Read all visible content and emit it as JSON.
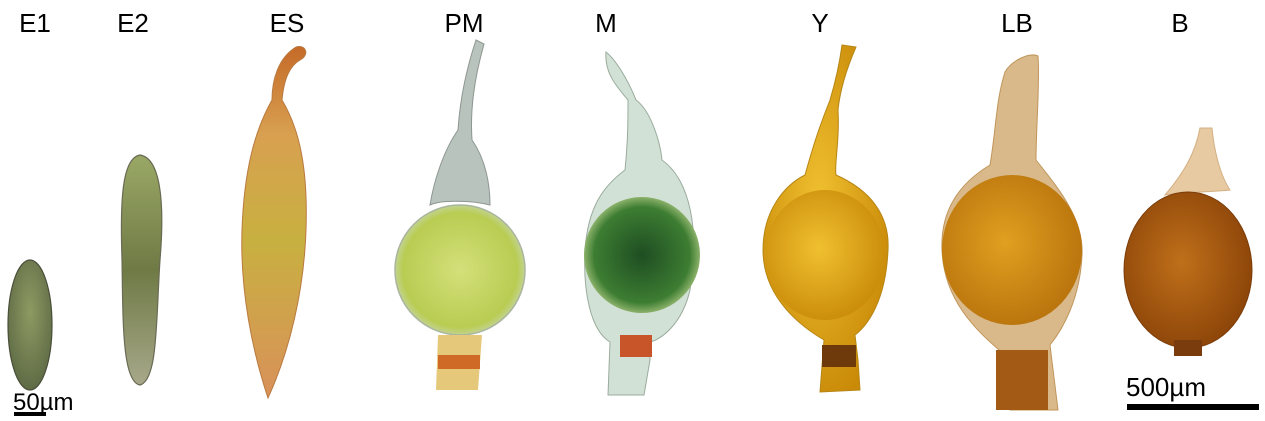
{
  "stages": [
    {
      "label": "E1",
      "color": "#7a8a55"
    },
    {
      "label": "E2",
      "color": "#8f9a5a"
    },
    {
      "label": "ES",
      "color": "#c9a33a"
    },
    {
      "label": "PM",
      "color": "#c8d860"
    },
    {
      "label": "M",
      "color": "#2f6a2a"
    },
    {
      "label": "Y",
      "color": "#e2a812"
    },
    {
      "label": "LB",
      "color": "#d6900f"
    },
    {
      "label": "B",
      "color": "#a8580c"
    }
  ],
  "scale_small": {
    "text": "50µm"
  },
  "scale_large": {
    "text": "500µm"
  }
}
